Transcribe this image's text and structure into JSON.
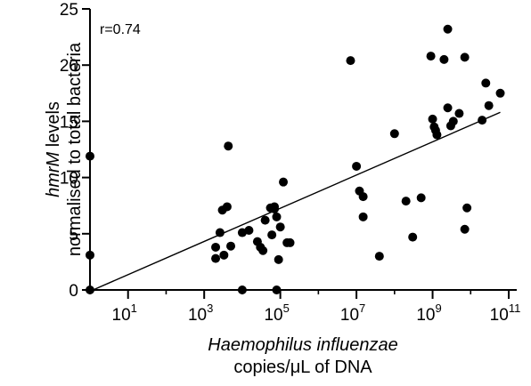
{
  "chart_data": {
    "type": "scatter",
    "x_scale": "log10",
    "xlim": [
      1,
      100000000000
    ],
    "ylim": [
      0,
      25
    ],
    "x_ticks": [
      {
        "value": 10,
        "base": "10",
        "exp": "1"
      },
      {
        "value": 1000,
        "base": "10",
        "exp": "3"
      },
      {
        "value": 100000,
        "base": "10",
        "exp": "5"
      },
      {
        "value": 10000000,
        "base": "10",
        "exp": "7"
      },
      {
        "value": 1000000000,
        "base": "10",
        "exp": "9"
      },
      {
        "value": 100000000000,
        "base": "10",
        "exp": "11"
      }
    ],
    "y_ticks": [
      {
        "value": 0,
        "label": "0"
      },
      {
        "value": 5,
        "label": "5"
      },
      {
        "value": 10,
        "label": "10"
      },
      {
        "value": 15,
        "label": "15"
      },
      {
        "value": 20,
        "label": "20"
      },
      {
        "value": 25,
        "label": "25"
      }
    ],
    "xlabel_line1": "Haemophilus influenzae",
    "xlabel_line2": "copies/μL of  DNA",
    "ylabel_part1": "hmrM",
    "ylabel_part2": " levels",
    "ylabel_line2": "normalised to total bacteria",
    "annotation": "r=0.74",
    "grid": false,
    "point_color": "#000000",
    "points": [
      {
        "x": 1,
        "y": 11.9
      },
      {
        "x": 1,
        "y": 3.1
      },
      {
        "x": 1,
        "y": 0
      },
      {
        "x": 2000,
        "y": 3.8
      },
      {
        "x": 2000,
        "y": 2.8
      },
      {
        "x": 2600,
        "y": 5.1
      },
      {
        "x": 3000,
        "y": 7.1
      },
      {
        "x": 3300,
        "y": 3.1
      },
      {
        "x": 4000,
        "y": 7.4
      },
      {
        "x": 4300,
        "y": 12.8
      },
      {
        "x": 5000,
        "y": 3.9
      },
      {
        "x": 10000,
        "y": 5.1
      },
      {
        "x": 10000,
        "y": 0
      },
      {
        "x": 15000,
        "y": 5.3
      },
      {
        "x": 25000,
        "y": 4.3
      },
      {
        "x": 30000,
        "y": 3.8
      },
      {
        "x": 35000,
        "y": 3.5
      },
      {
        "x": 40000,
        "y": 6.2
      },
      {
        "x": 55000,
        "y": 7.3
      },
      {
        "x": 60000,
        "y": 4.9
      },
      {
        "x": 70000,
        "y": 7.2
      },
      {
        "x": 70000,
        "y": 7.4
      },
      {
        "x": 80000,
        "y": 6.5
      },
      {
        "x": 80000,
        "y": 0
      },
      {
        "x": 90000,
        "y": 2.7
      },
      {
        "x": 100000,
        "y": 5.6
      },
      {
        "x": 120000,
        "y": 9.6
      },
      {
        "x": 150000,
        "y": 4.2
      },
      {
        "x": 180000,
        "y": 4.2
      },
      {
        "x": 7000000,
        "y": 20.4
      },
      {
        "x": 10000000,
        "y": 11.0
      },
      {
        "x": 12000000,
        "y": 8.8
      },
      {
        "x": 15000000,
        "y": 8.3
      },
      {
        "x": 15000000,
        "y": 6.5
      },
      {
        "x": 40000000,
        "y": 3.0
      },
      {
        "x": 100000000,
        "y": 13.9
      },
      {
        "x": 200000000,
        "y": 7.9
      },
      {
        "x": 300000000,
        "y": 4.7
      },
      {
        "x": 500000000,
        "y": 8.2
      },
      {
        "x": 900000000,
        "y": 20.8
      },
      {
        "x": 1000000000,
        "y": 15.2
      },
      {
        "x": 1100000000,
        "y": 14.5
      },
      {
        "x": 1200000000,
        "y": 14.2
      },
      {
        "x": 1300000000,
        "y": 13.8
      },
      {
        "x": 2000000000,
        "y": 20.5
      },
      {
        "x": 2500000000,
        "y": 23.2
      },
      {
        "x": 2500000000,
        "y": 16.2
      },
      {
        "x": 3000000000,
        "y": 14.6
      },
      {
        "x": 3500000000,
        "y": 15.0
      },
      {
        "x": 5000000000,
        "y": 15.7
      },
      {
        "x": 7000000000,
        "y": 20.7
      },
      {
        "x": 7000000000,
        "y": 5.4
      },
      {
        "x": 8000000000,
        "y": 7.3
      },
      {
        "x": 20000000000,
        "y": 15.1
      },
      {
        "x": 25000000000,
        "y": 18.4
      },
      {
        "x": 30000000000,
        "y": 16.4
      },
      {
        "x": 60000000000,
        "y": 17.5
      }
    ],
    "fit_line": {
      "x_start": 1.2,
      "y_start": 0,
      "x_end": 60000000000,
      "y_end": 15.8
    }
  }
}
